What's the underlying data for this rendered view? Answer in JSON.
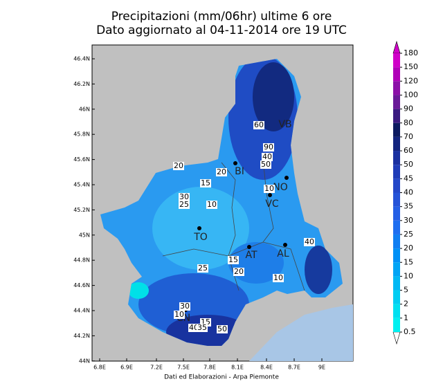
{
  "title": "Precipitazioni (mm/06hr) ultime 6 ore",
  "subtitle": "Dato aggiornato al 04-11-2014 ore 19 UTC",
  "lat_ticks": [
    "46.4N",
    "46.2N",
    "46N",
    "45.8N",
    "45.6N",
    "45.4N",
    "45.2N",
    "45N",
    "44.8N",
    "44.6N",
    "44.4N",
    "44.2N",
    "44N"
  ],
  "lon_ticks": [
    "6.8E",
    "6.9E",
    "7.2E",
    "7.5E",
    "7.8E",
    "8.1E",
    "8.4E",
    "8.7E",
    "9E"
  ],
  "colorbar": {
    "levels": [
      0.5,
      1,
      2,
      5,
      10,
      15,
      20,
      25,
      30,
      35,
      40,
      45,
      50,
      60,
      70,
      80,
      90,
      100,
      120,
      150,
      180
    ],
    "colors": [
      "#00f0f0",
      "#00e0f0",
      "#00cdf2",
      "#00b8f4",
      "#00a4f5",
      "#0090f6",
      "#107ef2",
      "#1e6ef0",
      "#245fe6",
      "#2553d8",
      "#2347c8",
      "#1f3cb8",
      "#1a30a0",
      "#13247f",
      "#0c1a60",
      "#3a1a80",
      "#6a1a98",
      "#8c10a8",
      "#b000b8",
      "#d000c8"
    ]
  },
  "cities": [
    "VB",
    "BI",
    "NO",
    "VC",
    "TO",
    "AT",
    "AL",
    "CN"
  ],
  "contour_labels": [
    "60",
    "90",
    "40",
    "50",
    "20",
    "20",
    "15",
    "30",
    "25",
    "10",
    "10",
    "10",
    "40",
    "15",
    "20",
    "25",
    "10",
    "15",
    "30",
    "40",
    "35",
    "50"
  ],
  "footer": "Dati ed Elaborazioni - Arpa Piemonte"
}
